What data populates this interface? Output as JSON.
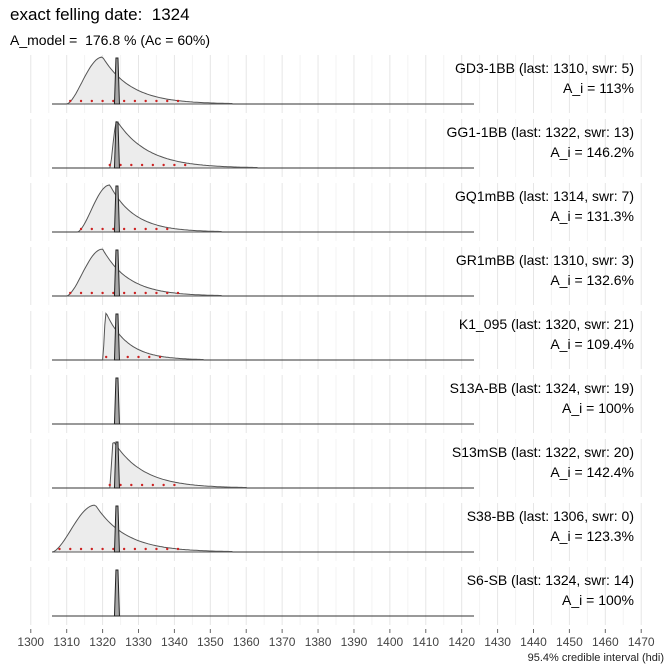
{
  "title": "exact felling date:  1324",
  "subtitle": "A_model =  176.8 % (Ac = 60%)",
  "caption": "95.4% credible interval (hdi)",
  "chart_data": {
    "type": "area",
    "felling_date": 1324,
    "x_ticks": [
      1300,
      1310,
      1320,
      1330,
      1340,
      1350,
      1360,
      1370,
      1380,
      1390,
      1400,
      1410,
      1420,
      1430,
      1440,
      1450,
      1460,
      1470
    ],
    "xlim": [
      1297,
      1473
    ],
    "grid": true,
    "panels": [
      {
        "label": "GD3-1BB (last: 1310, swr: 5)",
        "ai": "A_i = 113%",
        "start": 1310,
        "peak": 1320,
        "end": 1356,
        "hdi": [
          1311,
          1341
        ]
      },
      {
        "label": "GG1-1BB (last: 1322, swr: 13)",
        "ai": "A_i = 146.2%",
        "start": 1322,
        "peak": 1324,
        "end": 1363,
        "hdi": [
          1322,
          1344
        ]
      },
      {
        "label": "GQ1mBB (last: 1314, swr: 7)",
        "ai": "A_i = 131.3%",
        "start": 1313,
        "peak": 1322,
        "end": 1353,
        "hdi": [
          1314,
          1340
        ]
      },
      {
        "label": "GR1mBB (last: 1310, swr: 3)",
        "ai": "A_i = 132.6%",
        "start": 1310,
        "peak": 1320,
        "end": 1353,
        "hdi": [
          1311,
          1342
        ]
      },
      {
        "label": "K1_095 (last: 1320, swr: 21)",
        "ai": "A_i = 109.4%",
        "start": 1320,
        "peak": 1321,
        "end": 1348,
        "hdi": [
          1321,
          1338
        ]
      },
      {
        "label": "S13A-BB (last: 1324, swr: 19)",
        "ai": "A_i = 100%",
        "start": null,
        "peak": null,
        "end": null,
        "hdi": null
      },
      {
        "label": "S13mSB (last: 1322, swr: 20)",
        "ai": "A_i = 142.4%",
        "start": 1322,
        "peak": 1323,
        "end": 1360,
        "hdi": [
          1322,
          1342
        ]
      },
      {
        "label": "S38-BB (last: 1306, swr: 0)",
        "ai": "A_i = 123.3%",
        "start": 1306,
        "peak": 1318,
        "end": 1356,
        "hdi": [
          1308,
          1343
        ]
      },
      {
        "label": "S6-SB (last: 1324, swr: 14)",
        "ai": "A_i = 100%",
        "start": null,
        "peak": null,
        "end": null,
        "hdi": null
      }
    ]
  },
  "colors": {
    "grid": "#e6e6e6",
    "fill": "#ececec",
    "outline": "#555555",
    "spike": "#a8a8a8",
    "hdi": "#cc2222"
  }
}
